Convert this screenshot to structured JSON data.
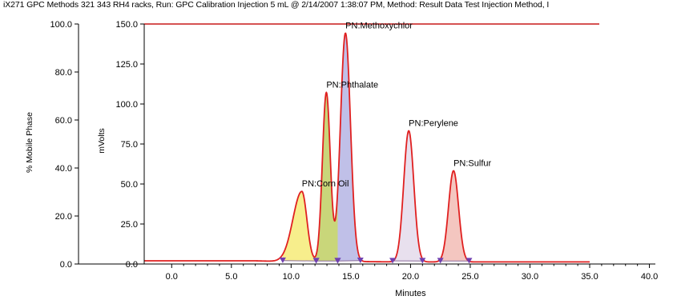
{
  "chart_data": {
    "type": "line",
    "title": "iX271 GPC Methods 321  343 RH4 racks, Run: GPC Calibration Injection 5 mL @ 2/14/2007 1:38:07 PM, Method: Result Data Test Injection Method, I",
    "xlabel": "Minutes",
    "ylabel_left": "% Mobile Phase",
    "ylabel_right": "mVolts",
    "xlim": [
      -2.3,
      40.5
    ],
    "x_ticks": [
      "0.0",
      "5.0",
      "10.0",
      "15.0",
      "20.0",
      "25.0",
      "30.0",
      "35.0",
      "40.0"
    ],
    "ylim_left": [
      0,
      100
    ],
    "y_ticks_left": [
      "0.0",
      "20.0",
      "40.0",
      "60.0",
      "80.0",
      "100.0"
    ],
    "ylim_right": [
      0,
      150
    ],
    "y_ticks_right": [
      "0.0",
      "25.0",
      "50.0",
      "75.0",
      "100.0",
      "125.0",
      "150.0"
    ],
    "grid": false,
    "colors": {
      "trace": "#e02020",
      "mobile_phase": "#c81818",
      "baseline": "#8a6a9a",
      "marker": "#7040b0"
    },
    "mobile_phase_level": 100,
    "series": [
      {
        "name": "",
        "x": [
          -2.3,
          7.0,
          9.5,
          12.0,
          13.0,
          15.8,
          19.0,
          22.0,
          35.0
        ],
        "values": [
          2,
          2,
          1.5,
          1.3,
          1.2,
          1.5,
          1.3,
          1.3,
          1.3
        ]
      }
    ],
    "peaks": [
      {
        "label": "PN:Corn Oil",
        "rt": 10.9,
        "height": 44,
        "sigma_left": 0.75,
        "sigma_right": 0.42,
        "start": 9.3,
        "end": 12.1,
        "fill": "#f7ee8c"
      },
      {
        "label": "PN:Phthalate",
        "rt": 12.95,
        "height": 106,
        "sigma_left": 0.33,
        "sigma_right": 0.33,
        "start": 12.1,
        "end": 13.9,
        "fill": "#c9d67a"
      },
      {
        "label": "PN:Methoxychlor",
        "rt": 14.55,
        "height": 143,
        "sigma_left": 0.42,
        "sigma_right": 0.42,
        "start": 13.9,
        "end": 15.8,
        "fill": "#c0c0e8"
      },
      {
        "label": "PN:Perylene",
        "rt": 19.85,
        "height": 82,
        "sigma_left": 0.42,
        "sigma_right": 0.42,
        "start": 18.5,
        "end": 21.0,
        "fill": "#e8e0ee"
      },
      {
        "label": "PN:Sulfur",
        "rt": 23.6,
        "height": 57,
        "sigma_left": 0.42,
        "sigma_right": 0.42,
        "start": 22.5,
        "end": 24.9,
        "fill": "#f4c6c0"
      }
    ]
  }
}
